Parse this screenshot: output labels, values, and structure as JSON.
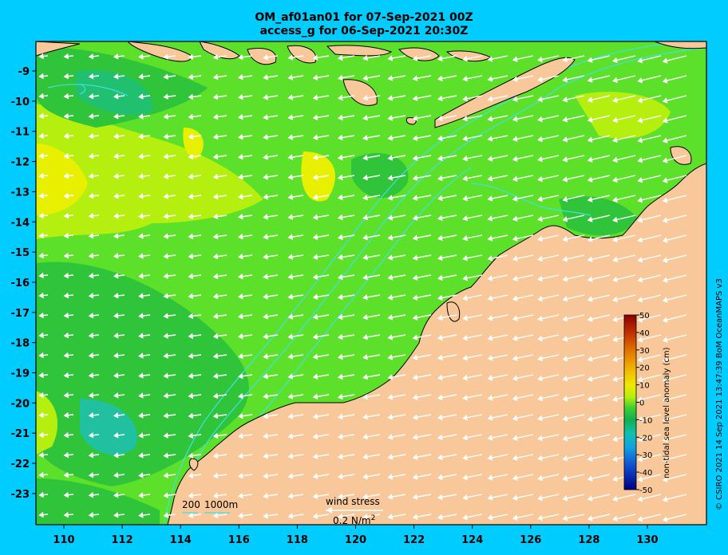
{
  "title_line1": "OM_af01an01 for 07-Sep-2021 00Z",
  "title_line2": "access_g for 06-Sep-2021 20:30Z",
  "credit": "© CSIRO 2021  14 Sep 2021 13:47:39 BoM OceanMAPS v3",
  "colorbar": {
    "label": "non-tidal sea level anomaly (cm)",
    "ticks": [
      "50",
      "40",
      "30",
      "20",
      "10",
      "0",
      "-10",
      "-20",
      "-30",
      "-40",
      "-50"
    ]
  },
  "bathymetry_legend": {
    "contour1": "200",
    "contour2": "1000m"
  },
  "wind_legend": {
    "label": "wind stress",
    "value": "0.2 N/m",
    "superscript": "2"
  },
  "axes": {
    "x_ticks": [
      "110",
      "112",
      "114",
      "116",
      "118",
      "120",
      "122",
      "124",
      "126",
      "128",
      "130"
    ],
    "y_ticks": [
      "-9",
      "-10",
      "-11",
      "-12",
      "-13",
      "-14",
      "-15",
      "-16",
      "-17",
      "-18",
      "-19",
      "-20",
      "-21",
      "-22",
      "-23"
    ]
  },
  "colors": {
    "background": "#00ccff",
    "land": "#f8c89a",
    "sea_light": "#b4ef10",
    "sea_mid": "#5de02a",
    "sea_dark": "#2fc43a",
    "sea_teal": "#20c070",
    "contour": "#40e0e0"
  }
}
